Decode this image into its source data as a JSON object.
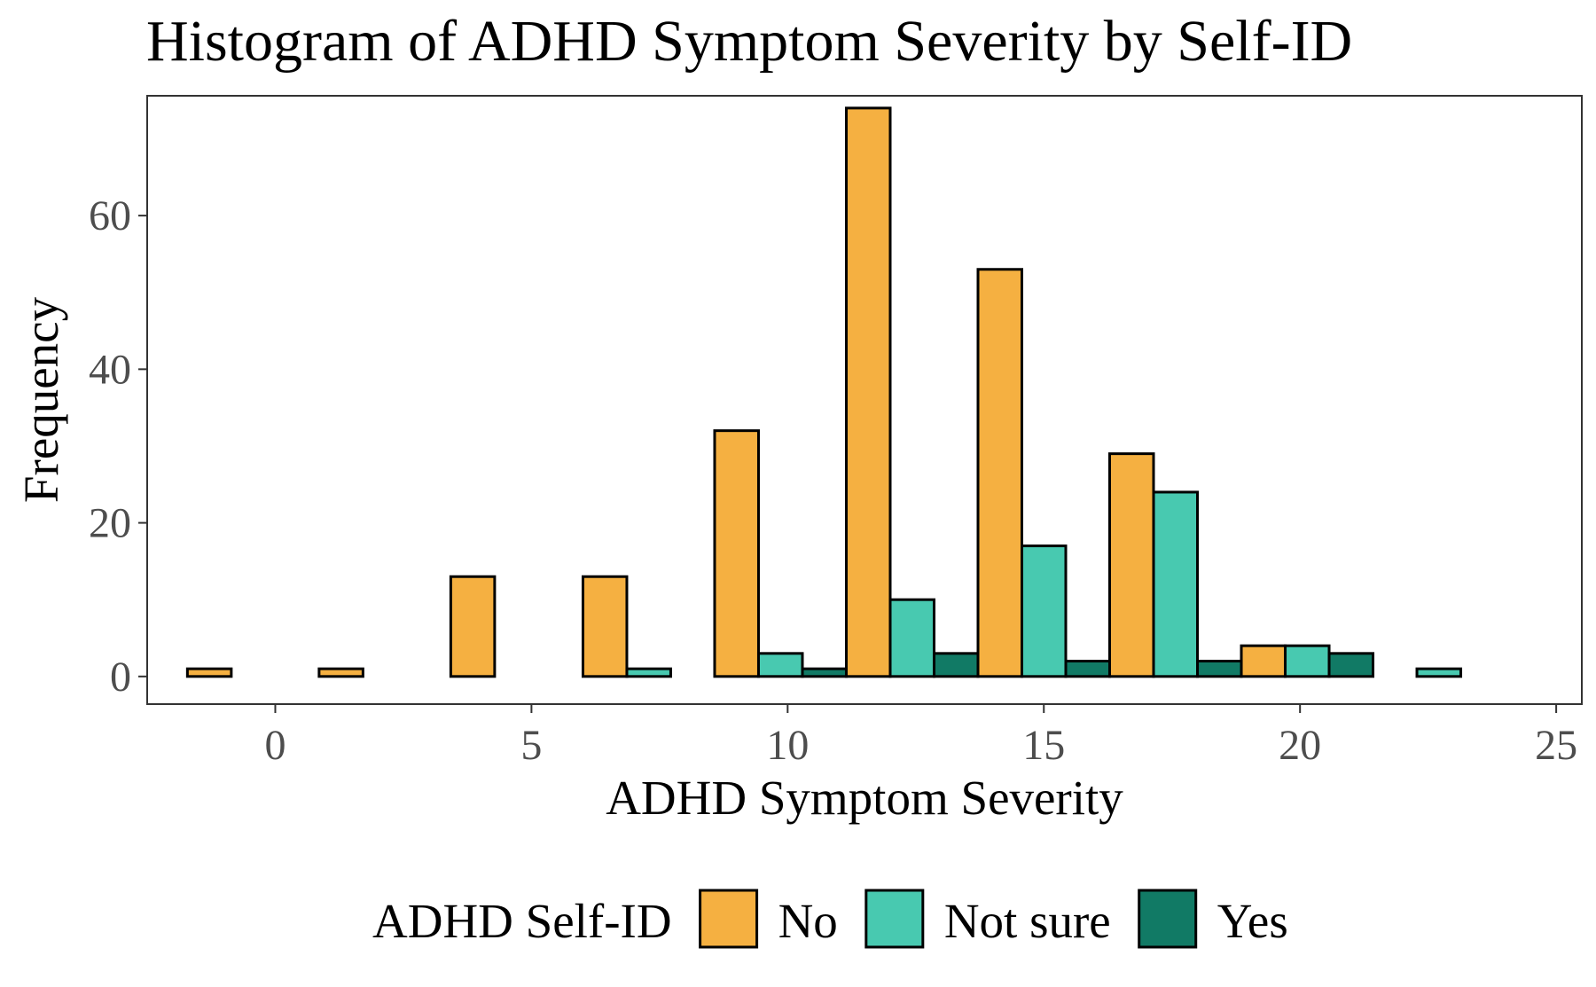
{
  "chart_data": {
    "type": "bar",
    "title": "Histogram of ADHD Symptom Severity by Self-ID",
    "xlabel": "ADHD Symptom Severity",
    "ylabel": "Frequency",
    "xlim": [
      -2.5,
      25.5
    ],
    "ylim": [
      -3.6,
      75.6
    ],
    "x_ticks": [
      0,
      5,
      10,
      15,
      20,
      25
    ],
    "y_ticks": [
      0,
      20,
      40,
      60
    ],
    "grid": false,
    "legend_position": "bottom",
    "legend_title": "ADHD Self-ID",
    "bin_width": 2.57,
    "bin_centers": [
      -0.43,
      2.14,
      4.71,
      7.29,
      9.86,
      12.43,
      15.0,
      17.57,
      20.14,
      22.71
    ],
    "series": [
      {
        "name": "No",
        "color": "#F5B041",
        "values": [
          1,
          1,
          13,
          13,
          32,
          74,
          53,
          29,
          4,
          0
        ]
      },
      {
        "name": "Not sure",
        "color": "#48C9B0",
        "values": [
          0,
          0,
          0,
          1,
          3,
          10,
          17,
          24,
          4,
          1
        ]
      },
      {
        "name": "Yes",
        "color": "#117A65",
        "values": [
          0,
          0,
          0,
          0,
          1,
          3,
          2,
          2,
          3,
          0
        ]
      }
    ]
  }
}
